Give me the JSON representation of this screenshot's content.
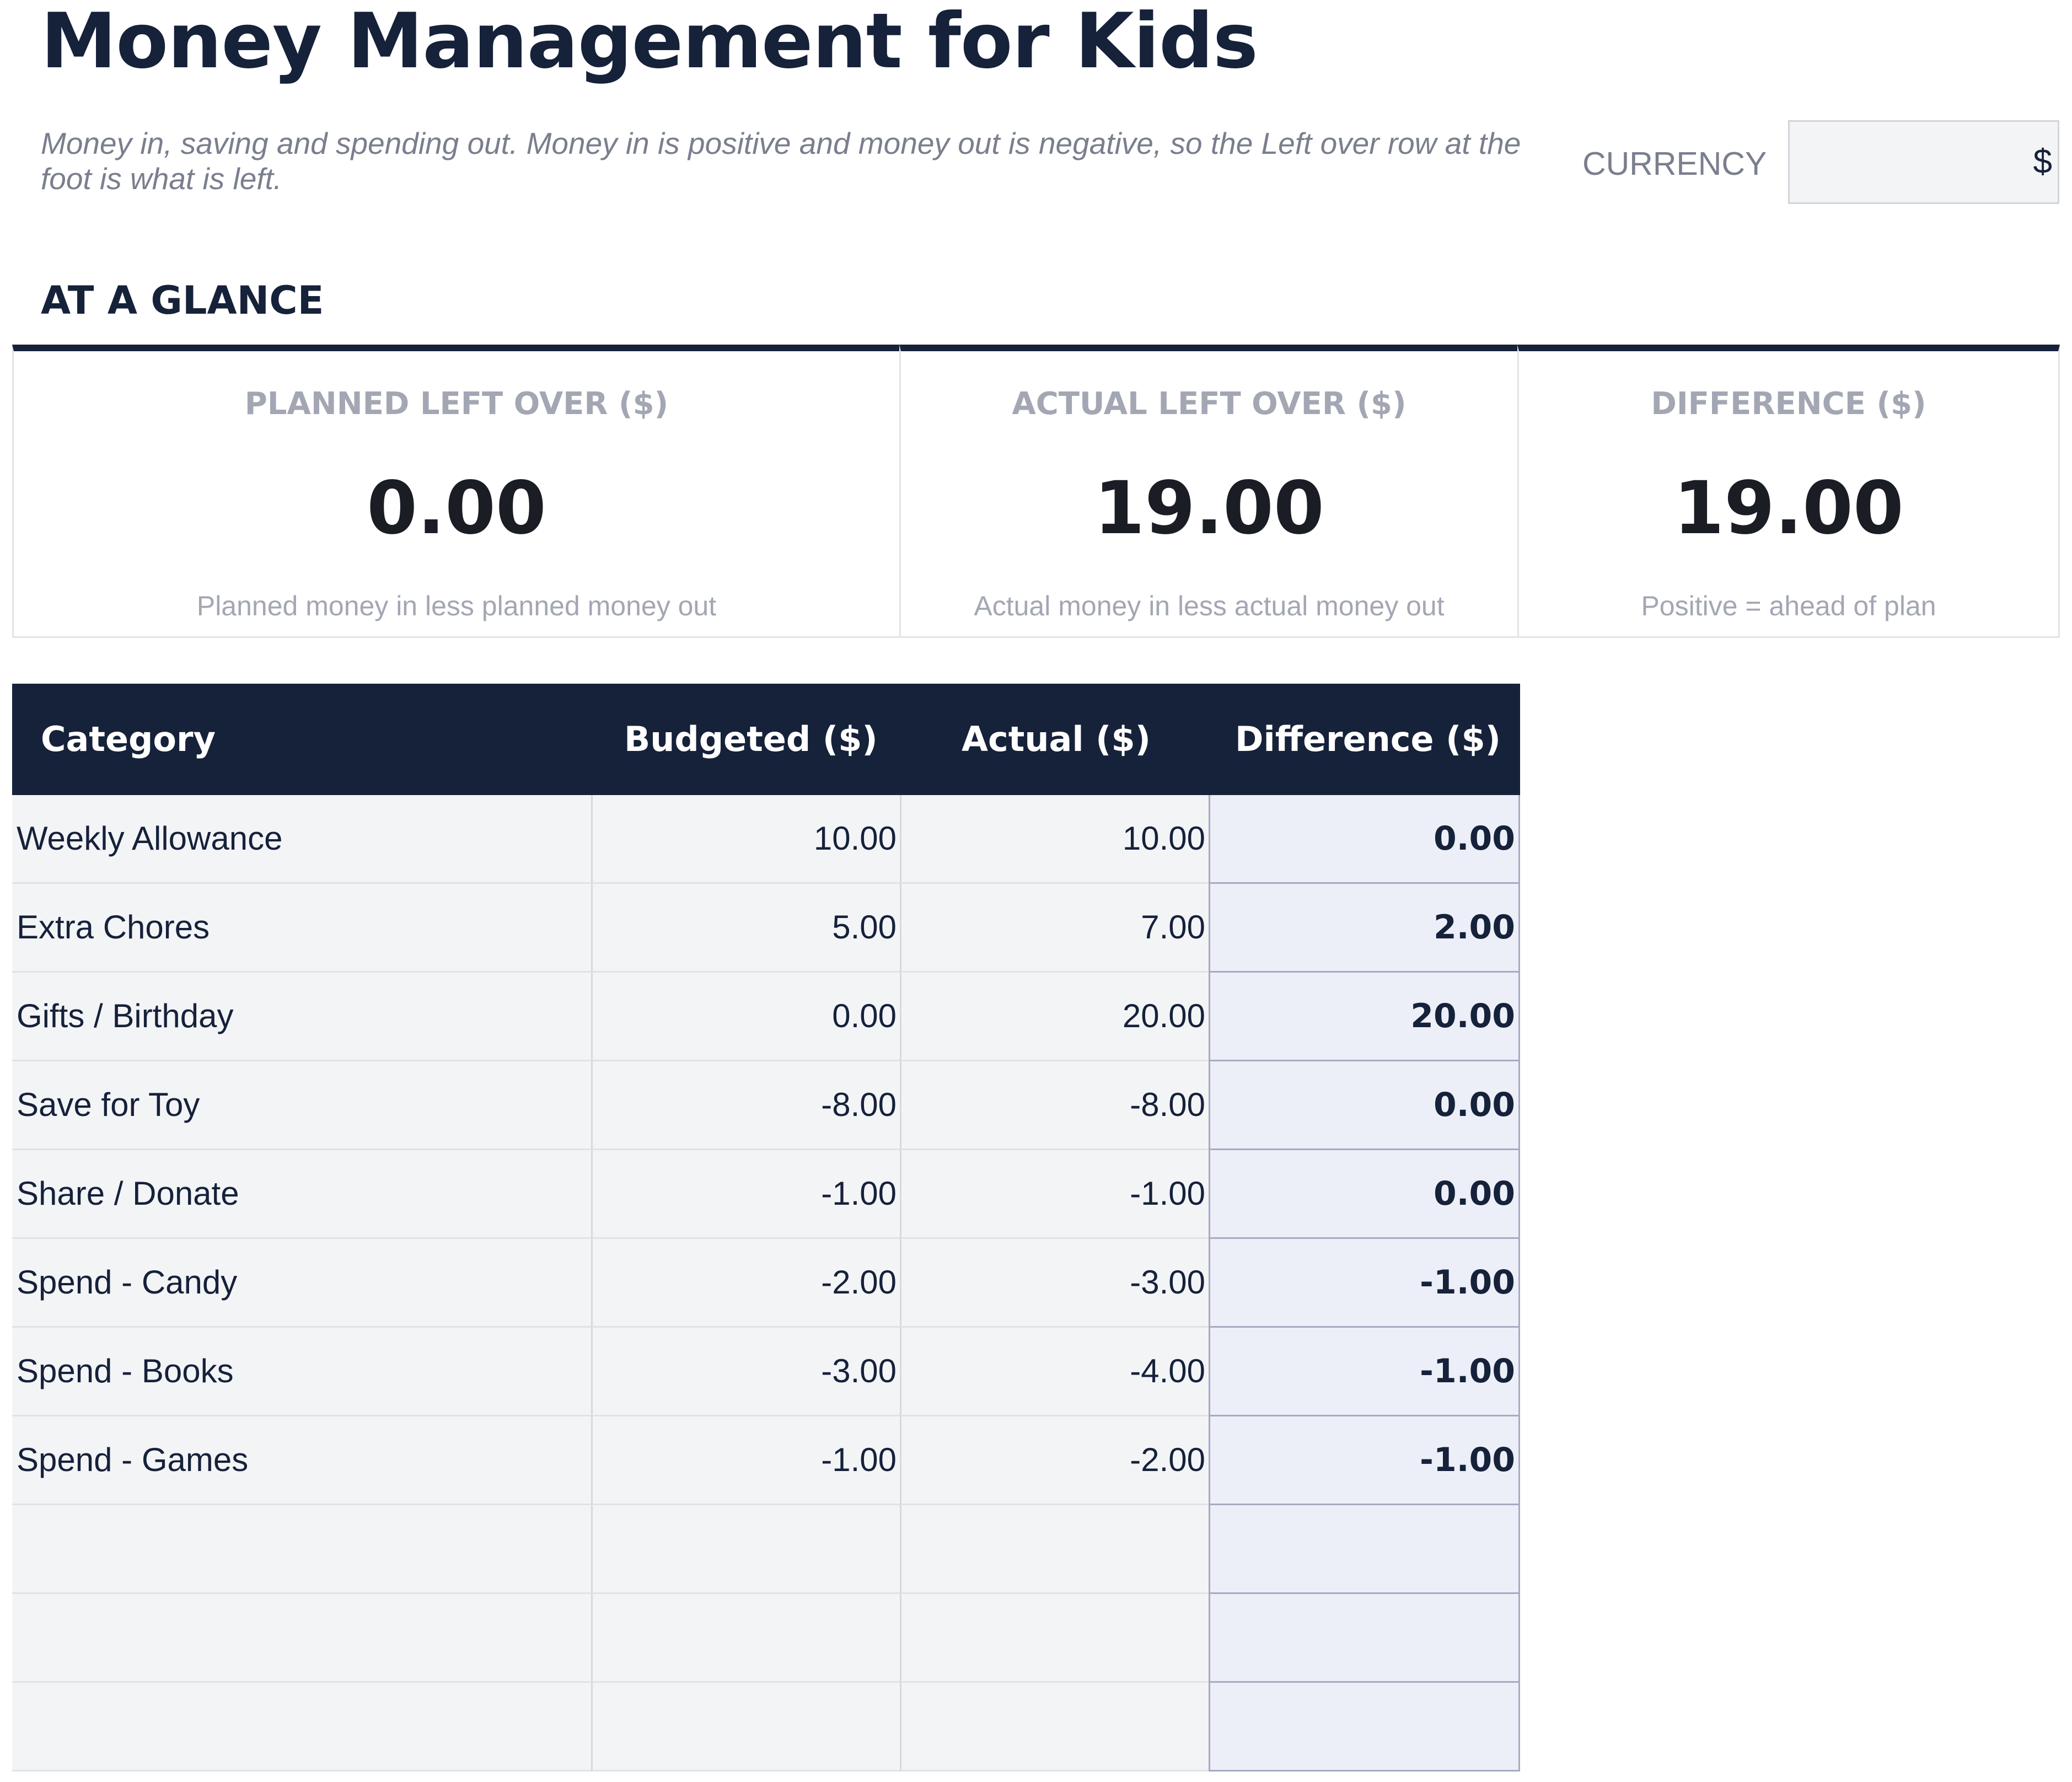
{
  "header": {
    "title": "Money Management for Kids",
    "subtitle": "Money in, saving and spending out. Money in is positive and money out is negative, so the Left over row at the foot is what is left.",
    "currency_label": "CURRENCY",
    "currency_value": "$"
  },
  "glance": {
    "heading": "AT A GLANCE",
    "cards": [
      {
        "label": "PLANNED LEFT OVER ($)",
        "value": "0.00",
        "note": "Planned money in less planned money out"
      },
      {
        "label": "ACTUAL LEFT OVER ($)",
        "value": "19.00",
        "note": "Actual money in less actual money out"
      },
      {
        "label": "DIFFERENCE ($)",
        "value": "19.00",
        "note": "Positive = ahead of plan"
      }
    ]
  },
  "table": {
    "headers": {
      "category": "Category",
      "budgeted": "Budgeted ($)",
      "actual": "Actual ($)",
      "difference": "Difference ($)"
    },
    "rows": [
      {
        "category": "Weekly Allowance",
        "budgeted": "10.00",
        "actual": "10.00",
        "difference": "0.00"
      },
      {
        "category": "Extra Chores",
        "budgeted": "5.00",
        "actual": "7.00",
        "difference": "2.00"
      },
      {
        "category": "Gifts / Birthday",
        "budgeted": "0.00",
        "actual": "20.00",
        "difference": "20.00"
      },
      {
        "category": "Save for Toy",
        "budgeted": "-8.00",
        "actual": "-8.00",
        "difference": "0.00"
      },
      {
        "category": "Share / Donate",
        "budgeted": "-1.00",
        "actual": "-1.00",
        "difference": "0.00"
      },
      {
        "category": "Spend - Candy",
        "budgeted": "-2.00",
        "actual": "-3.00",
        "difference": "-1.00"
      },
      {
        "category": "Spend - Books",
        "budgeted": "-3.00",
        "actual": "-4.00",
        "difference": "-1.00"
      },
      {
        "category": "Spend - Games",
        "budgeted": "-1.00",
        "actual": "-2.00",
        "difference": "-1.00"
      },
      {
        "category": "",
        "budgeted": "",
        "actual": "",
        "difference": ""
      },
      {
        "category": "",
        "budgeted": "",
        "actual": "",
        "difference": ""
      },
      {
        "category": "",
        "budgeted": "",
        "actual": "",
        "difference": ""
      }
    ]
  }
}
